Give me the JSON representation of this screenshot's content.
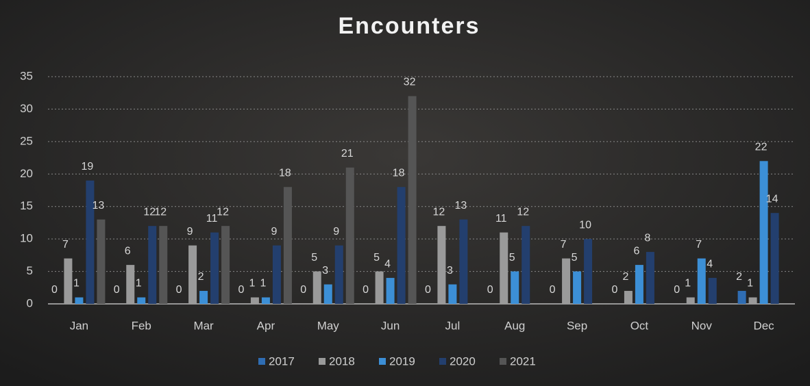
{
  "chart_data": {
    "type": "bar",
    "title": "Encounters",
    "categories": [
      "Jan",
      "Feb",
      "Mar",
      "Apr",
      "May",
      "Jun",
      "Jul",
      "Aug",
      "Sep",
      "Oct",
      "Nov",
      "Dec"
    ],
    "series": [
      {
        "name": "2017",
        "color": "#2f6db3",
        "values": [
          0,
          0,
          0,
          0,
          0,
          0,
          0,
          0,
          0,
          0,
          0,
          2
        ]
      },
      {
        "name": "2018",
        "color": "#9a9a9a",
        "values": [
          7,
          6,
          9,
          1,
          5,
          5,
          12,
          11,
          7,
          2,
          1,
          1
        ]
      },
      {
        "name": "2019",
        "color": "#3c8fd6",
        "values": [
          1,
          1,
          2,
          1,
          3,
          4,
          3,
          5,
          5,
          6,
          7,
          22
        ]
      },
      {
        "name": "2020",
        "color": "#233f6e",
        "values": [
          19,
          12,
          11,
          9,
          9,
          18,
          13,
          12,
          10,
          8,
          4,
          14
        ]
      },
      {
        "name": "2021",
        "color": "#555555",
        "values": [
          13,
          12,
          12,
          18,
          21,
          32,
          null,
          null,
          null,
          null,
          null,
          null
        ]
      }
    ],
    "ylim": [
      0,
      35
    ],
    "yticks": [
      0,
      5,
      10,
      15,
      20,
      25,
      30,
      35
    ],
    "grid": true,
    "legend": "bottom"
  }
}
